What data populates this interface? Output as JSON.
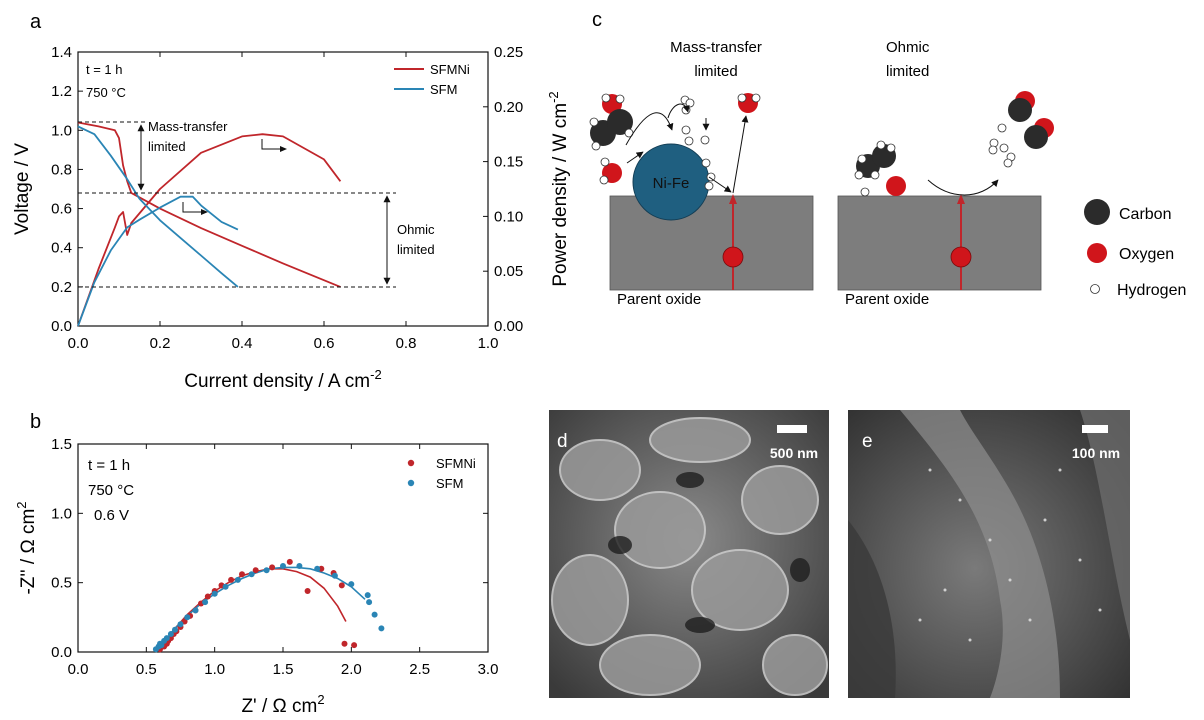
{
  "panels": {
    "a": "a",
    "b": "b",
    "c": "c",
    "d": "d",
    "e": "e"
  },
  "colors": {
    "SFMNi": "#c0262b",
    "SFM": "#2a85b5",
    "carbon": "#2b2b2b",
    "oxygen": "#d0151b",
    "oxide": "#7d7d7d",
    "nife": "#1f5f80"
  },
  "chart_data": [
    {
      "type": "line",
      "panel": "a",
      "xlabel": "Current density / A cm",
      "xlabel_sup": "-2",
      "ylabel": "Voltage / V",
      "ylabel_right": "Power density / W cm",
      "ylabel_right_sup": "-2",
      "xlim": [
        0,
        1.0
      ],
      "ylim": [
        0,
        1.4
      ],
      "ylim_right": [
        0,
        0.25
      ],
      "xticks": [
        "0.0",
        "0.2",
        "0.4",
        "0.6",
        "0.8",
        "1.0"
      ],
      "yticks": [
        "0.0",
        "0.2",
        "0.4",
        "0.6",
        "0.8",
        "1.0",
        "1.2",
        "1.4"
      ],
      "yticks_right": [
        "0.00",
        "0.05",
        "0.10",
        "0.15",
        "0.20",
        "0.25"
      ],
      "legend": [
        "SFMNi",
        "SFM"
      ],
      "legend_position": "top-right",
      "annotations": [
        "t = 1 h",
        "750 °C"
      ],
      "mass_transfer_label": [
        "Mass-transfer",
        "limited"
      ],
      "ohmic_label": [
        "Ohmic",
        "limited"
      ],
      "series": [
        {
          "name": "SFMNi",
          "axis": "left",
          "x": [
            0.0,
            0.05,
            0.09,
            0.1,
            0.11,
            0.12,
            0.13,
            0.2,
            0.3,
            0.4,
            0.5,
            0.64
          ],
          "y": [
            1.04,
            1.02,
            1.0,
            0.96,
            0.82,
            0.74,
            0.68,
            0.6,
            0.5,
            0.41,
            0.32,
            0.2
          ]
        },
        {
          "name": "SFMNi",
          "axis": "right",
          "x": [
            0.0,
            0.05,
            0.09,
            0.1,
            0.11,
            0.12,
            0.13,
            0.2,
            0.3,
            0.4,
            0.45,
            0.5,
            0.6,
            0.64
          ],
          "y": [
            0.0,
            0.052,
            0.09,
            0.1,
            0.104,
            0.083,
            0.094,
            0.125,
            0.158,
            0.173,
            0.175,
            0.173,
            0.152,
            0.132
          ]
        },
        {
          "name": "SFM",
          "axis": "left",
          "x": [
            0.0,
            0.04,
            0.08,
            0.12,
            0.15,
            0.2,
            0.25,
            0.3,
            0.35,
            0.39
          ],
          "y": [
            1.02,
            0.98,
            0.87,
            0.75,
            0.65,
            0.54,
            0.45,
            0.36,
            0.27,
            0.2
          ]
        },
        {
          "name": "SFM",
          "axis": "right",
          "x": [
            0.0,
            0.04,
            0.08,
            0.12,
            0.15,
            0.2,
            0.25,
            0.28,
            0.3,
            0.35,
            0.39
          ],
          "y": [
            0.0,
            0.04,
            0.069,
            0.09,
            0.097,
            0.108,
            0.118,
            0.118,
            0.11,
            0.095,
            0.088
          ]
        }
      ]
    },
    {
      "type": "scatter",
      "panel": "b",
      "xlabel": "Z' / Ω cm",
      "xlabel_sup": "2",
      "ylabel": "-Z'' / Ω cm",
      "ylabel_sup": "2",
      "xlim": [
        0,
        3.0
      ],
      "ylim": [
        0,
        1.5
      ],
      "xticks": [
        "0.0",
        "0.5",
        "1.0",
        "1.5",
        "2.0",
        "2.5",
        "3.0"
      ],
      "yticks": [
        "0.0",
        "0.5",
        "1.0",
        "1.5"
      ],
      "legend": [
        "SFMNi",
        "SFM"
      ],
      "legend_position": "top-right",
      "annotations": [
        "t = 1 h",
        "750 °C",
        "0.6 V"
      ],
      "series": [
        {
          "name": "SFMNi",
          "x": [
            0.6,
            0.63,
            0.65,
            0.66,
            0.68,
            0.7,
            0.72,
            0.75,
            0.78,
            0.82,
            0.86,
            0.9,
            0.95,
            1.0,
            1.05,
            1.12,
            1.2,
            1.3,
            1.42,
            1.55,
            1.68,
            1.78,
            1.87,
            1.93,
            1.95,
            2.02
          ],
          "y": [
            0.02,
            0.04,
            0.06,
            0.08,
            0.1,
            0.13,
            0.15,
            0.18,
            0.22,
            0.26,
            0.3,
            0.35,
            0.4,
            0.44,
            0.48,
            0.52,
            0.56,
            0.59,
            0.61,
            0.65,
            0.44,
            0.6,
            0.57,
            0.48,
            0.06,
            0.05
          ]
        },
        {
          "name": "SFM",
          "x": [
            0.57,
            0.59,
            0.6,
            0.61,
            0.63,
            0.65,
            0.68,
            0.71,
            0.75,
            0.8,
            0.86,
            0.93,
            1.0,
            1.08,
            1.17,
            1.27,
            1.38,
            1.5,
            1.62,
            1.75,
            1.88,
            2.0,
            2.12,
            2.13,
            2.17,
            2.22
          ],
          "y": [
            0.02,
            0.04,
            0.06,
            0.05,
            0.08,
            0.1,
            0.13,
            0.16,
            0.2,
            0.25,
            0.3,
            0.36,
            0.42,
            0.47,
            0.52,
            0.56,
            0.59,
            0.62,
            0.62,
            0.6,
            0.55,
            0.49,
            0.41,
            0.36,
            0.27,
            0.17
          ]
        },
        {
          "name": "SFMNi",
          "fit": true,
          "x": [
            0.6,
            0.7,
            0.8,
            0.9,
            1.0,
            1.1,
            1.2,
            1.3,
            1.4,
            1.5,
            1.6,
            1.7,
            1.8,
            1.9,
            1.96
          ],
          "y": [
            0.0,
            0.16,
            0.27,
            0.36,
            0.44,
            0.5,
            0.55,
            0.58,
            0.6,
            0.6,
            0.58,
            0.54,
            0.46,
            0.33,
            0.22
          ]
        },
        {
          "name": "SFM",
          "fit": true,
          "x": [
            0.57,
            0.7,
            0.8,
            0.9,
            1.0,
            1.1,
            1.2,
            1.3,
            1.4,
            1.5,
            1.6,
            1.7,
            1.8,
            1.9,
            2.0,
            2.1
          ],
          "y": [
            0.0,
            0.16,
            0.26,
            0.35,
            0.42,
            0.48,
            0.53,
            0.57,
            0.6,
            0.61,
            0.61,
            0.6,
            0.57,
            0.53,
            0.47,
            0.38
          ]
        }
      ]
    }
  ],
  "schematic": {
    "left_title": [
      "Mass-transfer",
      "limited"
    ],
    "right_title": [
      "Ohmic",
      "limited"
    ],
    "nife_label": "Ni-Fe",
    "oxide_label": "Parent oxide",
    "legend": [
      "Carbon",
      "Oxygen",
      "Hydrogen"
    ]
  },
  "micrographs": {
    "d_scale": "500 nm",
    "e_scale": "100 nm"
  }
}
